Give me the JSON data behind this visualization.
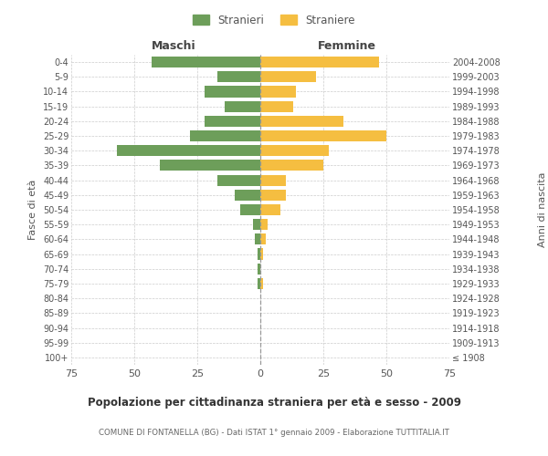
{
  "age_groups": [
    "100+",
    "95-99",
    "90-94",
    "85-89",
    "80-84",
    "75-79",
    "70-74",
    "65-69",
    "60-64",
    "55-59",
    "50-54",
    "45-49",
    "40-44",
    "35-39",
    "30-34",
    "25-29",
    "20-24",
    "15-19",
    "10-14",
    "5-9",
    "0-4"
  ],
  "birth_years": [
    "≤ 1908",
    "1909-1913",
    "1914-1918",
    "1919-1923",
    "1924-1928",
    "1929-1933",
    "1934-1938",
    "1939-1943",
    "1944-1948",
    "1949-1953",
    "1954-1958",
    "1959-1963",
    "1964-1968",
    "1969-1973",
    "1974-1978",
    "1979-1983",
    "1984-1988",
    "1989-1993",
    "1994-1998",
    "1999-2003",
    "2004-2008"
  ],
  "males": [
    0,
    0,
    0,
    0,
    0,
    1,
    1,
    1,
    2,
    3,
    8,
    10,
    17,
    40,
    57,
    28,
    22,
    14,
    22,
    17,
    43
  ],
  "females": [
    0,
    0,
    0,
    0,
    0,
    1,
    0,
    1,
    2,
    3,
    8,
    10,
    10,
    25,
    27,
    50,
    33,
    13,
    14,
    22,
    47
  ],
  "male_color": "#6d9e5a",
  "female_color": "#f5be41",
  "background_color": "#ffffff",
  "grid_color": "#cccccc",
  "title": "Popolazione per cittadinanza straniera per età e sesso - 2009",
  "subtitle": "COMUNE DI FONTANELLA (BG) - Dati ISTAT 1° gennaio 2009 - Elaborazione TUTTITALIA.IT",
  "ylabel_left": "Fasce di età",
  "ylabel_right": "Anni di nascita",
  "header_left": "Maschi",
  "header_right": "Femmine",
  "legend_male": "Stranieri",
  "legend_female": "Straniere",
  "xlim": 75
}
